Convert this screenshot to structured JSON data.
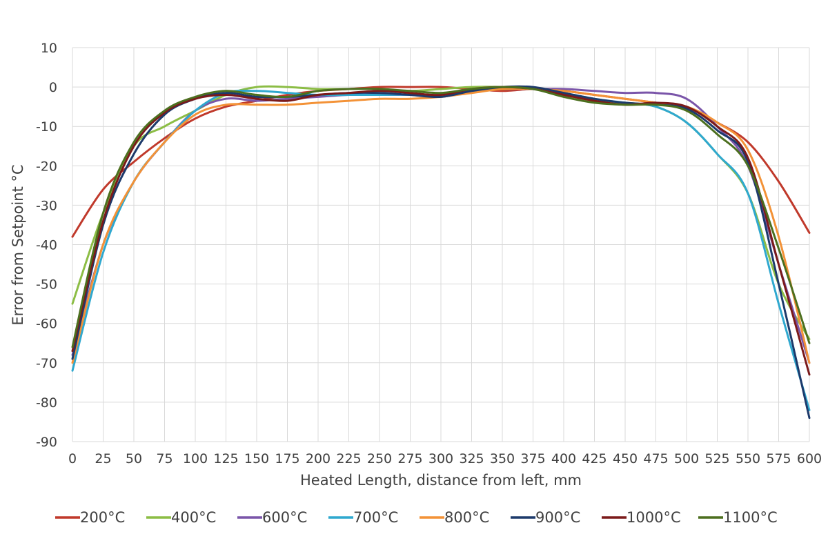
{
  "chart_data": {
    "type": "line",
    "title": "",
    "xlabel": "Heated Length, distance from left, mm",
    "ylabel": "Error from Setpoint °C",
    "xlim": [
      0,
      600
    ],
    "ylim": [
      -90,
      10
    ],
    "x_ticks": [
      "0",
      "25",
      "50",
      "75",
      "100",
      "125",
      "150",
      "175",
      "200",
      "225",
      "250",
      "275",
      "300",
      "325",
      "350",
      "375",
      "400",
      "425",
      "450",
      "475",
      "500",
      "525",
      "550",
      "575",
      "600"
    ],
    "y_ticks": [
      "10",
      "0",
      "-10",
      "-20",
      "-30",
      "-40",
      "-50",
      "-60",
      "-70",
      "-80",
      "-90"
    ],
    "grid": true,
    "legend_position": "bottom",
    "x": [
      0,
      25,
      50,
      75,
      100,
      125,
      150,
      175,
      200,
      225,
      250,
      275,
      300,
      325,
      350,
      375,
      400,
      425,
      450,
      475,
      500,
      525,
      550,
      575,
      600
    ],
    "series": [
      {
        "name": "200°C",
        "color": "#c0392b",
        "values": [
          -38,
          -26,
          -19,
          -13,
          -8,
          -5,
          -3.5,
          -2,
          -1,
          -0.5,
          0,
          0,
          0,
          -0.5,
          -1,
          -0.5,
          -1,
          -2,
          -3,
          -4,
          -5,
          -9,
          -14,
          -24,
          -37
        ]
      },
      {
        "name": "400°C",
        "color": "#8cbd45",
        "values": [
          -55,
          -32,
          -15,
          -10,
          -6,
          -2,
          0,
          0,
          -0.5,
          -0.5,
          -0.5,
          -1,
          -0.5,
          0,
          0,
          -0.5,
          -2,
          -3.5,
          -4,
          -5,
          -9,
          -17,
          -27,
          -50,
          -64
        ]
      },
      {
        "name": "600°C",
        "color": "#7a55a9",
        "values": [
          -68,
          -40,
          -24,
          -14,
          -6,
          -3,
          -3.5,
          -3,
          -2.5,
          -2,
          -2,
          -2,
          -2,
          -1,
          -0.5,
          -0.5,
          -0.5,
          -1,
          -1.5,
          -1.5,
          -3,
          -10,
          -20,
          -45,
          -70
        ]
      },
      {
        "name": "700°C",
        "color": "#2fa8cf",
        "values": [
          -72,
          -42,
          -24,
          -14,
          -6,
          -1.5,
          -1,
          -1.5,
          -2,
          -2,
          -2,
          -2,
          -2.5,
          -1,
          -0.5,
          -0.5,
          -1.5,
          -3,
          -4,
          -5,
          -9,
          -17,
          -27,
          -55,
          -82
        ]
      },
      {
        "name": "800°C",
        "color": "#f39237",
        "values": [
          -70,
          -40,
          -24,
          -14,
          -7,
          -4.5,
          -4.5,
          -4.5,
          -4,
          -3.5,
          -3,
          -3,
          -2.5,
          -1.5,
          -0.5,
          -0.5,
          -1,
          -2,
          -3,
          -4,
          -5,
          -9,
          -16,
          -38,
          -70
        ]
      },
      {
        "name": "900°C",
        "color": "#1d3a6b",
        "values": [
          -69,
          -35,
          -17,
          -7,
          -3,
          -1.5,
          -2.5,
          -2.5,
          -2,
          -1.5,
          -1.5,
          -2,
          -2.5,
          -1,
          0,
          0,
          -1.5,
          -3,
          -4,
          -4.5,
          -5.5,
          -11,
          -19,
          -50,
          -84
        ]
      },
      {
        "name": "1000°C",
        "color": "#7b1a1a",
        "values": [
          -67,
          -34,
          -15,
          -6.5,
          -3,
          -2,
          -3,
          -3.5,
          -2,
          -1.5,
          -1,
          -1.5,
          -2,
          -0.5,
          0,
          -0.5,
          -2,
          -3.5,
          -4.5,
          -4,
          -5,
          -10,
          -18,
          -45,
          -73
        ]
      },
      {
        "name": "1100°C",
        "color": "#4c6f1f",
        "values": [
          -66,
          -32,
          -14,
          -6,
          -2.5,
          -1,
          -2,
          -2.5,
          -1,
          -0.5,
          -0.5,
          -1,
          -1.5,
          -0.5,
          0,
          -0.5,
          -2.5,
          -4,
          -4.5,
          -4.5,
          -6,
          -12,
          -20,
          -41,
          -65
        ]
      }
    ]
  }
}
